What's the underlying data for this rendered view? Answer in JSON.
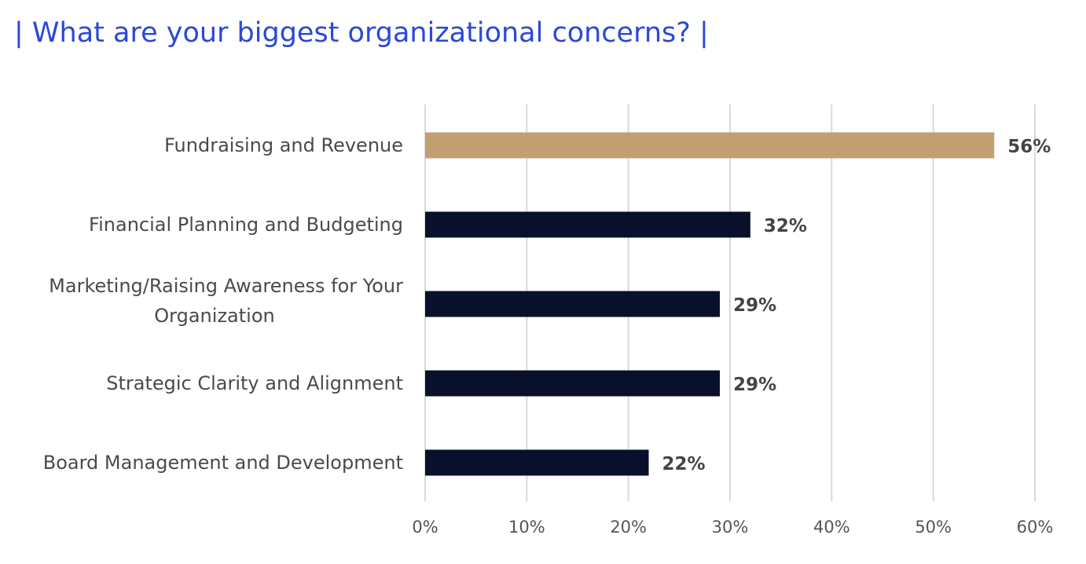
{
  "chart_data": {
    "type": "bar",
    "orientation": "horizontal",
    "title": "| What are your biggest organizational concerns? |",
    "categories": [
      "Fundraising and Revenue",
      "Financial Planning and Budgeting",
      "Marketing/Raising Awareness for Your Organization",
      "Strategic Clarity and Alignment",
      "Board Management and Development"
    ],
    "category_lines": [
      [
        "Fundraising and Revenue"
      ],
      [
        "Financial Planning and Budgeting"
      ],
      [
        "Marketing/Raising Awareness for Your",
        "Organization"
      ],
      [
        "Strategic Clarity and Alignment"
      ],
      [
        "Board Management and Development"
      ]
    ],
    "values": [
      56,
      32,
      29,
      29,
      22
    ],
    "value_labels": [
      "56%",
      "32%",
      "29%",
      "29%",
      "22%"
    ],
    "bar_colors": [
      "#c29f73",
      "#08102c",
      "#08102c",
      "#08102c",
      "#08102c"
    ],
    "xlim": [
      0,
      60
    ],
    "x_ticks": [
      0,
      10,
      20,
      30,
      40,
      50,
      60
    ],
    "x_tick_labels": [
      "0%",
      "10%",
      "20%",
      "30%",
      "40%",
      "50%",
      "60%"
    ],
    "xlabel": "",
    "ylabel": "",
    "grid": "vertical",
    "grid_color": "#d9d9d9",
    "title_color": "#2b48d8"
  }
}
